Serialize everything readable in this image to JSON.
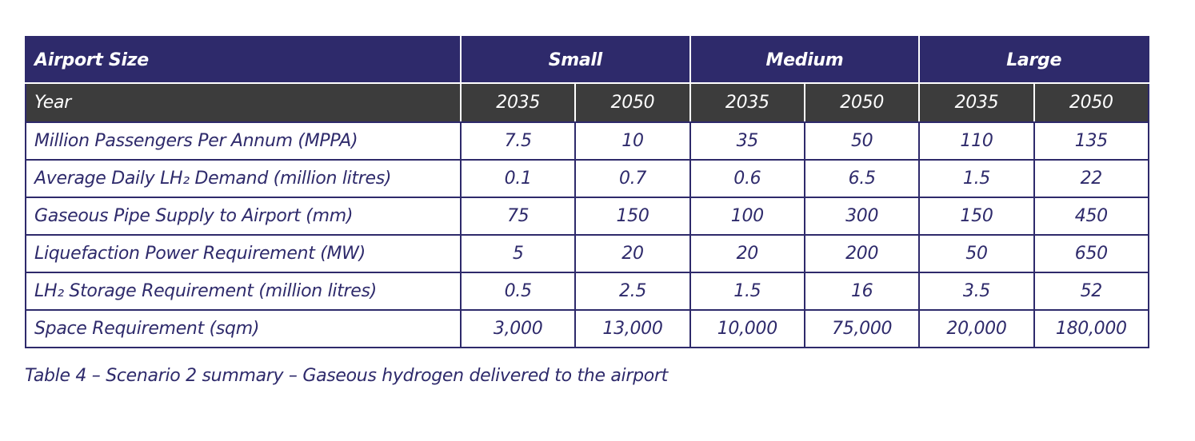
{
  "table": {
    "header": [
      "Airport Size",
      "Small",
      "Medium",
      "Large"
    ],
    "subheader": [
      "Year",
      "2035",
      "2050",
      "2035",
      "2050",
      "2035",
      "2050"
    ],
    "rows": [
      [
        "Million Passengers Per Annum (MPPA)",
        "7.5",
        "10",
        "35",
        "50",
        "110",
        "135"
      ],
      [
        "Average Daily LH₂ Demand (million litres)",
        "0.1",
        "0.7",
        "0.6",
        "6.5",
        "1.5",
        "22"
      ],
      [
        "Gaseous Pipe Supply to Airport (mm)",
        "75",
        "150",
        "100",
        "300",
        "150",
        "450"
      ],
      [
        "Liquefaction Power Requirement (MW)",
        "5",
        "20",
        "20",
        "200",
        "50",
        "650"
      ],
      [
        "LH₂ Storage Requirement (million litres)",
        "0.5",
        "2.5",
        "1.5",
        "16",
        "3.5",
        "52"
      ],
      [
        "Space Requirement (sqm)",
        "3,000",
        "13,000",
        "10,000",
        "75,000",
        "20,000",
        "180,000"
      ]
    ]
  },
  "caption": "Table 4 – Scenario 2 summary – Gaseous hydrogen delivered to the airport"
}
